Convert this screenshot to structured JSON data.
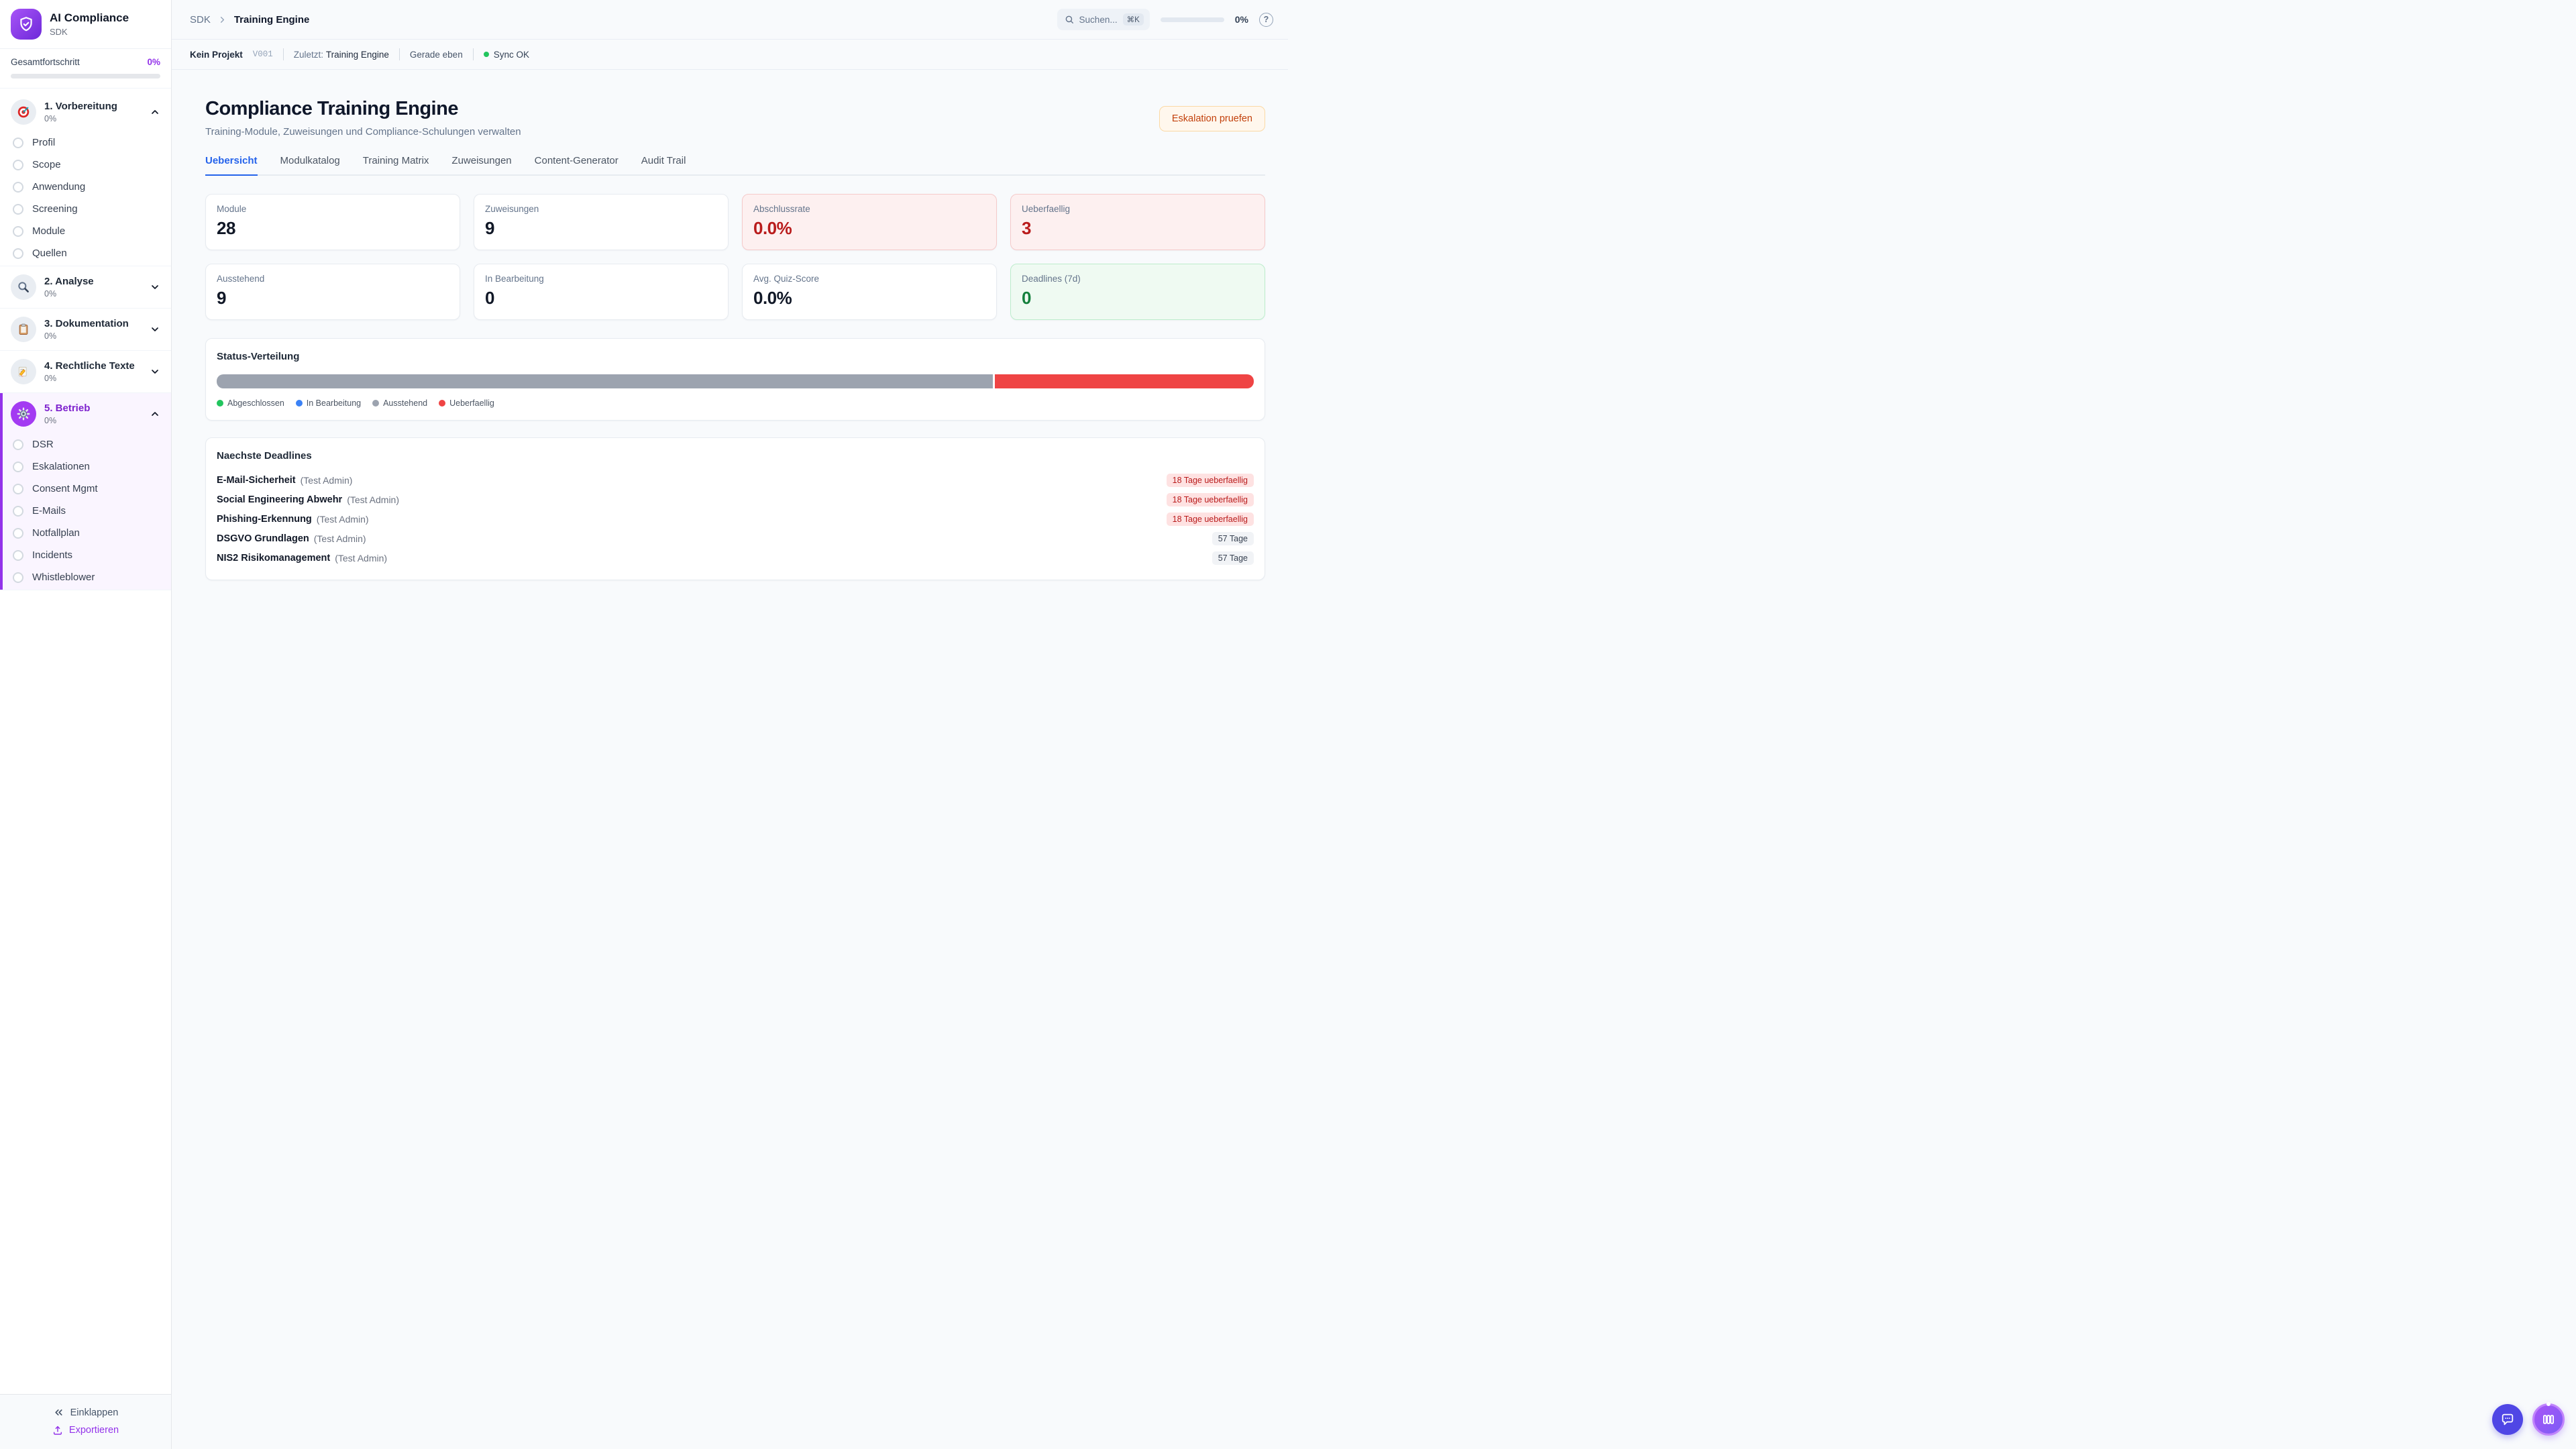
{
  "app": {
    "name": "AI Compliance",
    "subtitle": "SDK"
  },
  "sidebar": {
    "progress": {
      "label": "Gesamtfortschritt",
      "value": "0%",
      "percent": 0
    },
    "sections": [
      {
        "label": "1. Vorbereitung",
        "percent": "0%",
        "icon": "target-icon",
        "expanded": true,
        "items": [
          "Profil",
          "Scope",
          "Anwendung",
          "Screening",
          "Module",
          "Quellen"
        ]
      },
      {
        "label": "2. Analyse",
        "percent": "0%",
        "icon": "magnifier-icon",
        "expanded": false,
        "items": []
      },
      {
        "label": "3. Dokumentation",
        "percent": "0%",
        "icon": "clipboard-icon",
        "expanded": false,
        "items": []
      },
      {
        "label": "4. Rechtliche Texte",
        "percent": "0%",
        "icon": "pencil-icon",
        "expanded": false,
        "items": []
      },
      {
        "label": "5. Betrieb",
        "percent": "0%",
        "icon": "gear-icon",
        "expanded": true,
        "active": true,
        "items": [
          "DSR",
          "Eskalationen",
          "Consent Mgmt",
          "E-Mails",
          "Notfallplan",
          "Incidents",
          "Whistleblower"
        ]
      }
    ],
    "collapse_label": "Einklappen",
    "export_label": "Exportieren"
  },
  "topbar": {
    "breadcrumb": {
      "root": "SDK",
      "current": "Training Engine"
    },
    "search": {
      "placeholder": "Suchen...",
      "shortcut": "⌘K"
    },
    "progress": {
      "value": "0%",
      "percent": 0
    }
  },
  "statusbar": {
    "project": "Kein Projekt",
    "version": "V001",
    "last_label": "Zuletzt:",
    "last_value": "Training Engine",
    "time": "Gerade eben",
    "sync": "Sync OK"
  },
  "page": {
    "title": "Compliance Training Engine",
    "subtitle": "Training-Module, Zuweisungen und Compliance-Schulungen verwalten",
    "action_label": "Eskalation pruefen"
  },
  "tabs": [
    {
      "label": "Uebersicht",
      "active": true
    },
    {
      "label": "Modulkatalog",
      "active": false
    },
    {
      "label": "Training Matrix",
      "active": false
    },
    {
      "label": "Zuweisungen",
      "active": false
    },
    {
      "label": "Content-Generator",
      "active": false
    },
    {
      "label": "Audit Trail",
      "active": false
    }
  ],
  "stats": [
    {
      "label": "Module",
      "value": "28",
      "variant": "default"
    },
    {
      "label": "Zuweisungen",
      "value": "9",
      "variant": "default"
    },
    {
      "label": "Abschlussrate",
      "value": "0.0%",
      "variant": "danger"
    },
    {
      "label": "Ueberfaellig",
      "value": "3",
      "variant": "danger"
    },
    {
      "label": "Ausstehend",
      "value": "9",
      "variant": "default"
    },
    {
      "label": "In Bearbeitung",
      "value": "0",
      "variant": "default"
    },
    {
      "label": "Avg. Quiz-Score",
      "value": "0.0%",
      "variant": "default"
    },
    {
      "label": "Deadlines (7d)",
      "value": "0",
      "variant": "success"
    }
  ],
  "status_distribution": {
    "title": "Status-Verteilung",
    "segments": [
      {
        "label": "Ausstehend",
        "color": "#9ca3af",
        "percent": 75
      },
      {
        "label": "Ueberfaellig",
        "color": "#ef4444",
        "percent": 25
      }
    ],
    "legend": [
      {
        "label": "Abgeschlossen",
        "color": "#22c55e"
      },
      {
        "label": "In Bearbeitung",
        "color": "#3b82f6"
      },
      {
        "label": "Ausstehend",
        "color": "#9ca3af"
      },
      {
        "label": "Ueberfaellig",
        "color": "#ef4444"
      }
    ]
  },
  "deadlines": {
    "title": "Naechste Deadlines",
    "rows": [
      {
        "name": "E-Mail-Sicherheit",
        "assignee": "(Test Admin)",
        "badge": "18 Tage ueberfaellig",
        "overdue": true
      },
      {
        "name": "Social Engineering Abwehr",
        "assignee": "(Test Admin)",
        "badge": "18 Tage ueberfaellig",
        "overdue": true
      },
      {
        "name": "Phishing-Erkennung",
        "assignee": "(Test Admin)",
        "badge": "18 Tage ueberfaellig",
        "overdue": true
      },
      {
        "name": "DSGVO Grundlagen",
        "assignee": "(Test Admin)",
        "badge": "57 Tage",
        "overdue": false
      },
      {
        "name": "NIS2 Risikomanagement",
        "assignee": "(Test Admin)",
        "badge": "57 Tage",
        "overdue": false
      }
    ]
  },
  "colors": {
    "accent": "#9333ea",
    "tab_active": "#2563eb",
    "danger": "#b91c1c",
    "success": "#15803d",
    "sync_ok": "#22c55e",
    "warning_button_text": "#c2410c"
  }
}
